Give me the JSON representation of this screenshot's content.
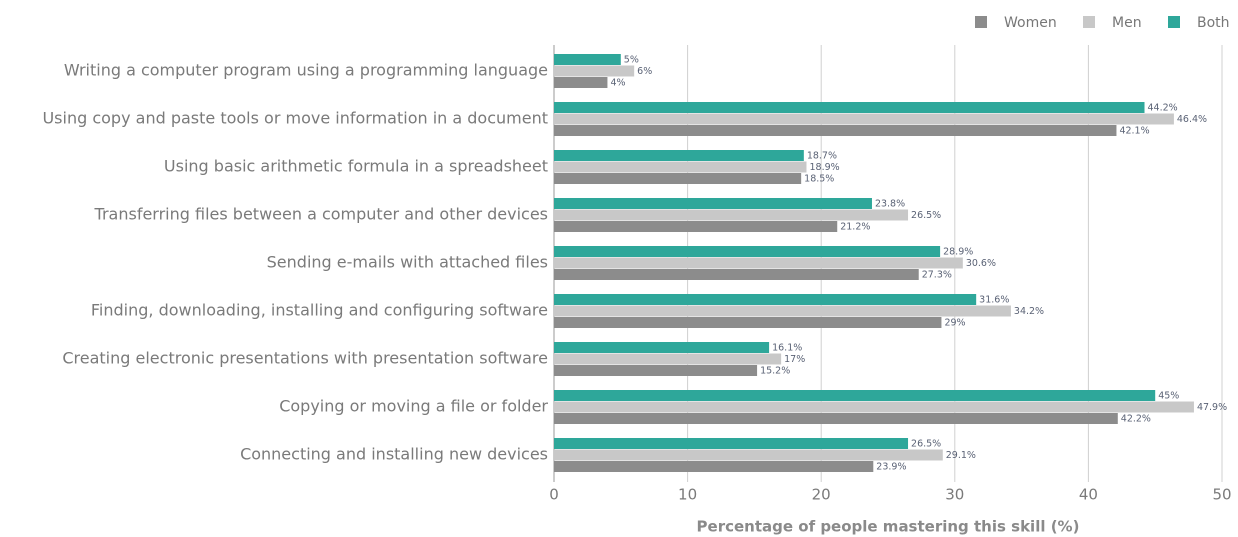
{
  "chart_data": {
    "type": "bar",
    "orientation": "horizontal",
    "categories": [
      "Writing a computer program using a programming language",
      "Using copy and paste tools or move information in a document",
      "Using basic arithmetic formula in a spreadsheet",
      "Transferring files between a computer and other devices",
      "Sending e-mails with attached files",
      "Finding, downloading, installing and configuring software",
      "Creating electronic presentations with presentation software",
      "Copying or moving a file or folder",
      "Connecting and installing new devices"
    ],
    "series": [
      {
        "name": "Women",
        "color": "#8c8c8c",
        "values": [
          4,
          42.1,
          18.5,
          21.2,
          27.3,
          29,
          15.2,
          42.2,
          23.9
        ],
        "value_labels": [
          "4%",
          "42.1%",
          "18.5%",
          "21.2%",
          "27.3%",
          "29%",
          "15.2%",
          "42.2%",
          "23.9%"
        ]
      },
      {
        "name": "Men",
        "color": "#c8c8c8",
        "values": [
          6,
          46.4,
          18.9,
          26.5,
          30.6,
          34.2,
          17,
          47.9,
          29.1
        ],
        "value_labels": [
          "6%",
          "46.4%",
          "18.9%",
          "26.5%",
          "30.6%",
          "34.2%",
          "17%",
          "47.9%",
          "29.1%"
        ]
      },
      {
        "name": "Both",
        "color": "#2ea79a",
        "values": [
          5,
          44.2,
          18.7,
          23.8,
          28.9,
          31.6,
          16.1,
          45,
          26.5
        ],
        "value_labels": [
          "5%",
          "44.2%",
          "18.7%",
          "23.8%",
          "28.9%",
          "31.6%",
          "16.1%",
          "45%",
          "26.5%"
        ]
      }
    ],
    "xlabel": "Percentage of people mastering this skill (%)",
    "xlim": [
      0,
      50
    ],
    "xticks": [
      0,
      10,
      20,
      30,
      40,
      50
    ],
    "grid": true,
    "legend": "top-right"
  }
}
